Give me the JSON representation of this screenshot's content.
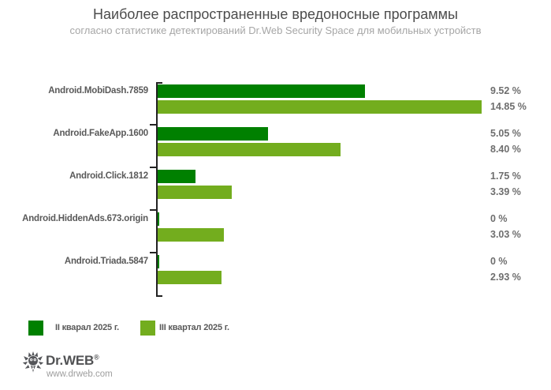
{
  "chart_data": {
    "type": "bar",
    "orientation": "horizontal",
    "title": "Наиболее распространенные вредоносные программы",
    "subtitle": "согласно статистике детектирований Dr.Web Security Space для мобильных устройств",
    "categories": [
      "Android.MobiDash.7859",
      "Android.FakeApp.1600",
      "Android.Click.1812",
      "Android.HiddenAds.673.origin",
      "Android.Triada.5847"
    ],
    "series": [
      {
        "name": "II кварал 2025 г.",
        "color": "#008000",
        "values": [
          9.52,
          5.05,
          1.75,
          0,
          0
        ],
        "value_labels": [
          "9.52 %",
          "5.05 %",
          "1.75 %",
          "0 %",
          "0 %"
        ]
      },
      {
        "name": "III квартал 2025 г.",
        "color": "#73AD1E",
        "values": [
          14.85,
          8.4,
          3.39,
          3.03,
          2.93
        ],
        "value_labels": [
          "14.85 %",
          "8.40 %",
          "3.39 %",
          "3.03 %",
          "2.93 %"
        ]
      }
    ],
    "xlabel": "",
    "ylabel": "",
    "xlim": [
      0,
      15
    ],
    "grid": false,
    "legend_position": "bottom",
    "value_suffix": "%"
  },
  "colors": {
    "quarter2_green": "#008000",
    "quarter3_green": "#73AD1E",
    "axis": "#222222",
    "title_text": "#4c4c4c",
    "subtitle_text": "#a6a6a6",
    "category_text": "#595959",
    "value_text": "#6e6e6e"
  },
  "footer": {
    "brand": "Dr.WEB",
    "registered_mark": "®",
    "url": "www.drweb.com"
  }
}
